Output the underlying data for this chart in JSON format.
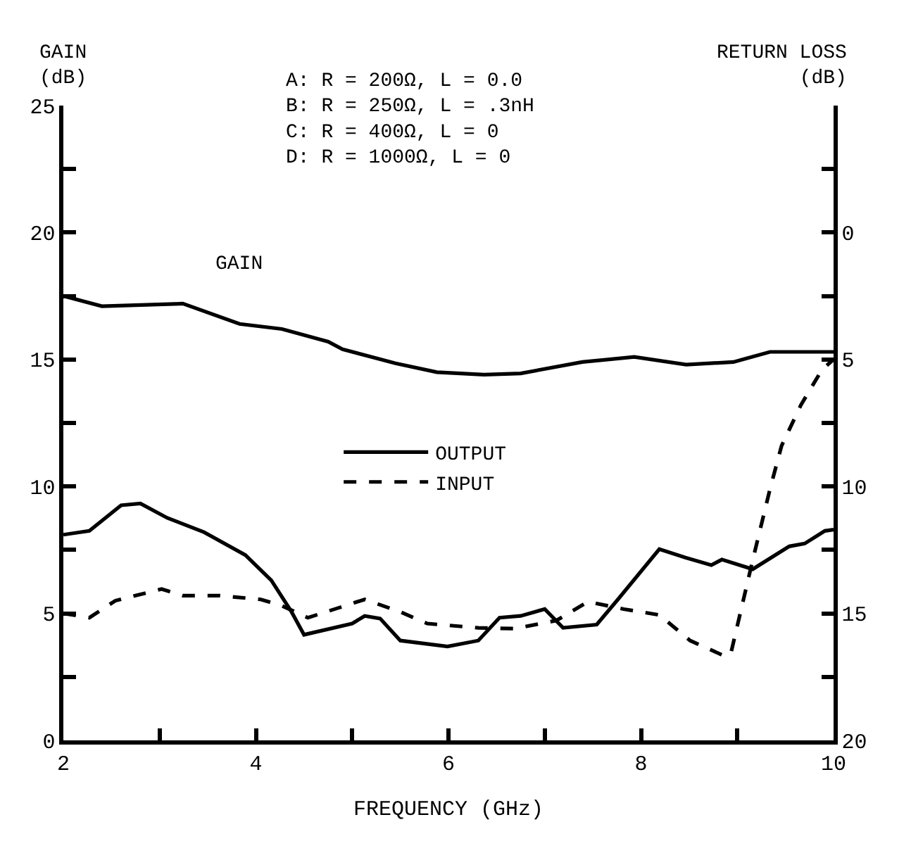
{
  "chart_data": {
    "type": "line",
    "xlabel": "FREQUENCY (GHz)",
    "ylabel": "GAIN\n(dB)",
    "y2label": "RETURN LOSS\n(dB)",
    "annotations": [
      "A: R = 200Ω, L = 0.0\nB: R = 250Ω, L = .3nH\nC: R = 400Ω, L = 0\nD: R = 1000Ω, L = 0"
    ],
    "xlim": [
      2,
      10
    ],
    "ylim": [
      0,
      25
    ],
    "y2lim": [
      20,
      -5
    ],
    "xticks": [
      2,
      {
        "value": 3,
        "label": null
      },
      4,
      {
        "value": 5,
        "label": null
      },
      6,
      {
        "value": 7,
        "label": null
      },
      8,
      {
        "value": 9,
        "label": null
      },
      10
    ],
    "yticks": [
      0,
      {
        "value": 2.5,
        "label": null
      },
      5,
      {
        "value": 7.5,
        "label": null
      },
      10,
      {
        "value": 12.5,
        "label": null
      },
      15,
      {
        "value": 17.5,
        "label": null
      },
      20,
      {
        "value": 22.5,
        "label": null
      },
      25
    ],
    "y2ticks": [
      20,
      {
        "value": 17.5,
        "label": null
      },
      15,
      {
        "value": 12.5,
        "label": null
      },
      10,
      {
        "value": 7.5,
        "label": null
      },
      5,
      {
        "value": 2.5,
        "label": null
      },
      0,
      {
        "value": -2.5,
        "label": null
      }
    ],
    "legend": "center",
    "marker": "none",
    "series": [
      {
        "name": "GAIN",
        "color": "#000000",
        "line_style": "solid",
        "x": [
          2.0,
          2.4,
          3.24,
          3.83,
          4.27,
          4.75,
          4.9,
          5.45,
          5.88,
          6.37,
          6.75,
          7.39,
          7.93,
          8.47,
          8.96,
          9.34,
          9.82,
          10.0
        ],
        "values": [
          17.5,
          17.1,
          17.2,
          16.4,
          16.2,
          15.7,
          15.4,
          14.85,
          14.5,
          14.4,
          14.45,
          14.9,
          15.1,
          14.8,
          14.9,
          15.3,
          15.3,
          15.3
        ]
      },
      {
        "name": "OUTPUT",
        "color": "#000000",
        "line_style": "solid",
        "axis": "y2",
        "x": [
          2.0,
          2.27,
          2.6,
          2.8,
          3.08,
          3.46,
          3.89,
          4.16,
          4.37,
          4.5,
          5.0,
          5.13,
          5.29,
          5.5,
          5.99,
          6.31,
          6.53,
          6.75,
          7.0,
          7.19,
          7.54,
          7.76,
          8.19,
          8.46,
          8.73,
          8.84,
          9.16,
          9.54,
          9.7,
          9.91,
          10.0
        ],
        "values": [
          11.9,
          11.75,
          10.74,
          10.67,
          11.24,
          11.8,
          12.7,
          13.7,
          14.94,
          15.84,
          15.4,
          15.1,
          15.2,
          16.07,
          16.3,
          16.07,
          15.17,
          15.1,
          14.83,
          15.57,
          15.44,
          14.45,
          12.47,
          12.8,
          13.1,
          12.88,
          13.26,
          12.36,
          12.25,
          11.75,
          11.7
        ]
      },
      {
        "name": "INPUT",
        "color": "#000000",
        "line_style": "dashed",
        "axis": "y2",
        "x": [
          2.0,
          2.27,
          2.54,
          3.02,
          3.24,
          3.62,
          4.05,
          4.27,
          4.54,
          5.13,
          5.5,
          5.78,
          6.31,
          6.69,
          7.12,
          7.45,
          7.82,
          8.19,
          8.51,
          8.84,
          8.93,
          9.16,
          9.34,
          9.46,
          9.66,
          9.88,
          10.0
        ],
        "values": [
          15.0,
          15.17,
          14.5,
          14.04,
          14.3,
          14.3,
          14.45,
          14.7,
          15.17,
          14.45,
          14.94,
          15.4,
          15.57,
          15.6,
          15.28,
          14.54,
          14.83,
          15.06,
          16.07,
          16.63,
          16.63,
          12.9,
          10.1,
          8.4,
          6.8,
          5.4,
          5.0
        ]
      }
    ]
  }
}
